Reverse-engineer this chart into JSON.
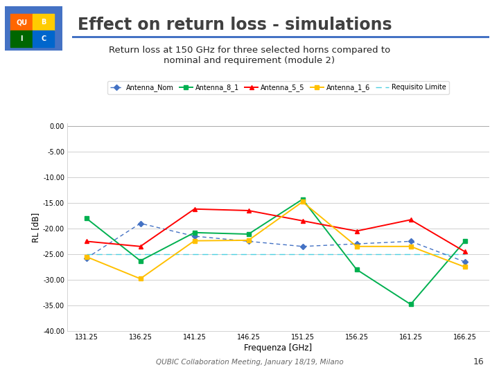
{
  "title": "Effect on return loss - simulations",
  "subtitle": "Return loss at 150 GHz for three selected horns compared to\nnominal and requirement (module 2)",
  "xlabel": "Frequenza [GHz]",
  "ylabel": "RL [dB]",
  "x_values": [
    131.25,
    136.25,
    141.25,
    146.25,
    151.25,
    156.25,
    161.25,
    166.25
  ],
  "antenna_nom": [
    -25.8,
    -19.0,
    -21.5,
    -22.5,
    -23.5,
    -23.0,
    -22.5,
    -26.5
  ],
  "antenna_8_1": [
    -18.0,
    -26.3,
    -20.8,
    -21.1,
    -14.3,
    -28.0,
    -34.8,
    -22.5
  ],
  "antenna_5_5": [
    -22.5,
    -23.5,
    -16.2,
    -16.5,
    -18.5,
    -20.5,
    -18.3,
    -24.5
  ],
  "antenna_1_6": [
    -25.5,
    -29.8,
    -22.4,
    -22.3,
    -14.8,
    -23.5,
    -23.5,
    -27.5
  ],
  "requisito_limite": [
    -25.0,
    -25.0,
    -25.0,
    -25.0,
    -25.0,
    -25.0,
    -25.0,
    -25.0
  ],
  "ylim": [
    -40,
    0.5
  ],
  "yticks": [
    0,
    -5,
    -10,
    -15,
    -20,
    -25,
    -30,
    -35,
    -40
  ],
  "ytick_labels": [
    "0.00",
    "-5.00",
    "-10.00",
    "-15.00",
    "-20.00",
    "-25.00",
    "-30.00",
    "-35.00",
    "-40.00"
  ],
  "color_nom": "#4472C4",
  "color_8_1": "#00B050",
  "color_5_5": "#FF0000",
  "color_1_6": "#FFC000",
  "color_limite": "#4DD0E1",
  "bg_color": "#FFFFFF",
  "plot_bg": "#FFFFFF",
  "footer": "QUBIC Collaboration Meeting, January 18/19, Milano",
  "page_num": "16",
  "title_color": "#404040",
  "rule_color": "#4472C4"
}
